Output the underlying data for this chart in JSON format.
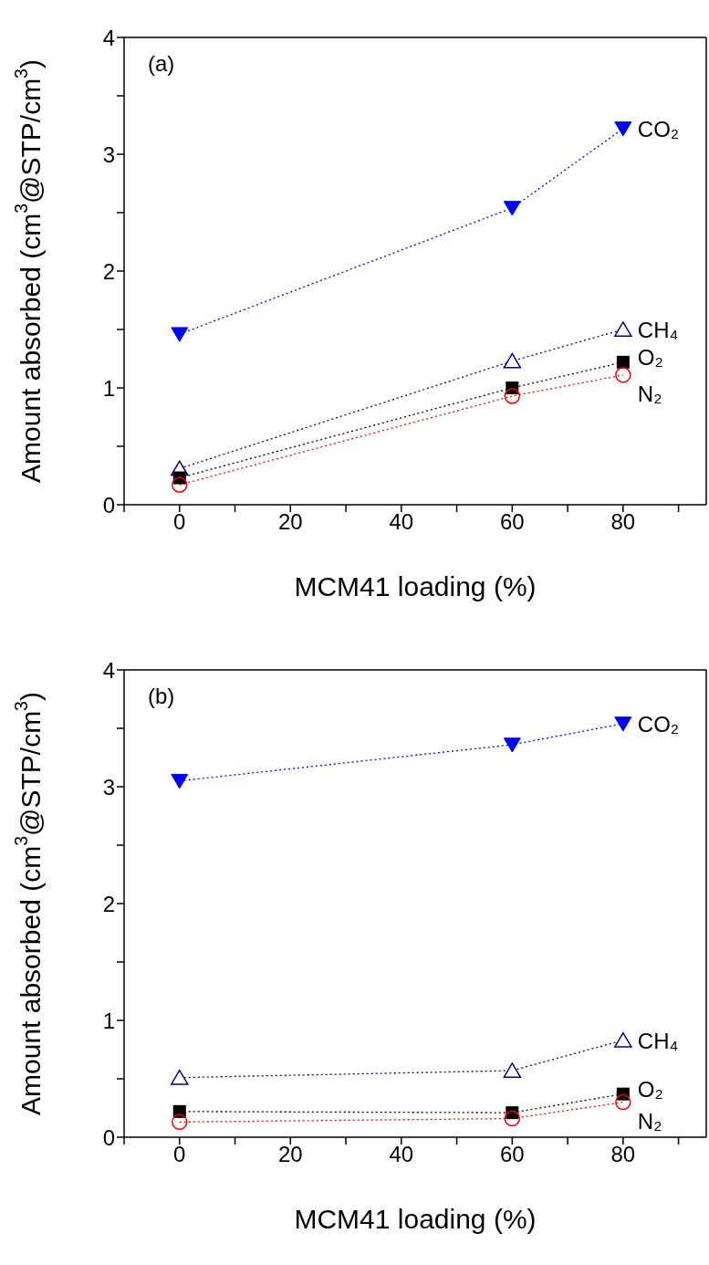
{
  "chart_data": [
    {
      "type": "line",
      "title": "(a)",
      "xlabel": "MCM41 loading (%)",
      "ylabel": "Amount absorbed (cm$^{3}$@STP/cm$^{3}$)",
      "x": [
        0,
        60,
        80
      ],
      "xlim": [
        -10,
        95
      ],
      "xticks": [
        {
          "value": -10,
          "label": null
        },
        0,
        {
          "value": 10,
          "label": null
        },
        20,
        {
          "value": 30,
          "label": null
        },
        40,
        {
          "value": 50,
          "label": null
        },
        60,
        {
          "value": 70,
          "label": null
        },
        80,
        {
          "value": 90,
          "label": null
        }
      ],
      "ylim": [
        0,
        4
      ],
      "yticks": [
        0,
        {
          "value": 0.5,
          "label": null
        },
        1,
        {
          "value": 1.5,
          "label": null
        },
        2,
        {
          "value": 2.5,
          "label": null
        },
        3,
        {
          "value": 3.5,
          "label": null
        },
        4
      ],
      "grid": false,
      "legend": false,
      "line_style": "dotted",
      "series": [
        {
          "name": "CO₂",
          "color": "#0000ff",
          "marker": "triangle-down",
          "values": [
            1.46,
            2.54,
            3.22
          ]
        },
        {
          "name": "CH₄",
          "color": "#00008b",
          "marker": "triangle",
          "values": [
            0.31,
            1.23,
            1.5
          ]
        },
        {
          "name": "O₂",
          "color": "#000000",
          "marker": "square",
          "values": [
            0.23,
            1.0,
            1.22
          ]
        },
        {
          "name": "N₂",
          "color": "#ff0000",
          "marker": "circle",
          "values": [
            0.17,
            0.93,
            1.11
          ]
        }
      ]
    },
    {
      "type": "line",
      "title": "(b)",
      "xlabel": "MCM41 loading (%)",
      "ylabel": "Amount absorbed (cm$^{3}$@STP/cm$^{3}$)",
      "x": [
        0,
        60,
        80
      ],
      "xlim": [
        -10,
        95
      ],
      "xticks": [
        {
          "value": -10,
          "label": null
        },
        0,
        {
          "value": 10,
          "label": null
        },
        20,
        {
          "value": 30,
          "label": null
        },
        40,
        {
          "value": 50,
          "label": null
        },
        60,
        {
          "value": 70,
          "label": null
        },
        80,
        {
          "value": 90,
          "label": null
        }
      ],
      "ylim": [
        0,
        4
      ],
      "yticks": [
        0,
        {
          "value": 0.5,
          "label": null
        },
        1,
        {
          "value": 1.5,
          "label": null
        },
        2,
        {
          "value": 2.5,
          "label": null
        },
        3,
        {
          "value": 3.5,
          "label": null
        },
        4
      ],
      "grid": false,
      "legend": false,
      "line_style": "dotted",
      "series": [
        {
          "name": "CO₂",
          "color": "#0000ff",
          "marker": "triangle-down",
          "values": [
            3.05,
            3.36,
            3.54
          ]
        },
        {
          "name": "CH₄",
          "color": "#00008b",
          "marker": "triangle",
          "values": [
            0.51,
            0.57,
            0.83
          ]
        },
        {
          "name": "O₂",
          "color": "#000000",
          "marker": "square",
          "values": [
            0.22,
            0.21,
            0.37
          ]
        },
        {
          "name": "N₂",
          "color": "#ff0000",
          "marker": "circle",
          "values": [
            0.13,
            0.16,
            0.3
          ]
        }
      ]
    }
  ]
}
